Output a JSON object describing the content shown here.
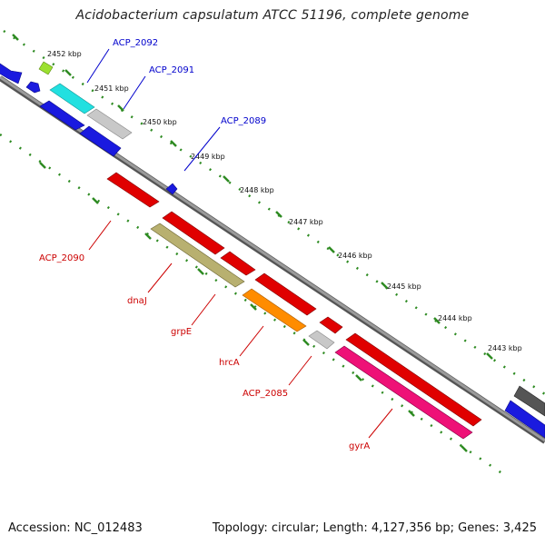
{
  "title": "Acidobacterium capsulatum ATCC 51196, complete genome",
  "footer": {
    "accession": "Accession: NC_012483",
    "summary": "Topology: circular; Length: 4,127,356 bp; Genes: 3,425"
  },
  "scale": {
    "ticks": [
      "2452 kbp",
      "2451 kbp",
      "2450 kbp",
      "2449 kbp",
      "2448 kbp",
      "2447 kbp",
      "2446 kbp",
      "2445 kbp",
      "2444 kbp",
      "2443 kbp"
    ]
  },
  "colors": {
    "backbone": "#8a8a8a",
    "dotted_track": "#2e8b22",
    "forward_label": "#0000cc",
    "reverse_label": "#cc0000"
  },
  "genes_forward": [
    {
      "name": "ACP_2092",
      "color": "#1a1adf"
    },
    {
      "name": "ACP_2091",
      "color": "#1a1adf"
    },
    {
      "name": "ACP_2089",
      "color": "#1a1adf"
    }
  ],
  "genes_reverse": [
    {
      "name": "ACP_2090",
      "color": "#e00000"
    },
    {
      "name": "dnaJ",
      "color": "#e00000"
    },
    {
      "name": "grpE",
      "color": "#b8b070"
    },
    {
      "name": "hrcA",
      "color": "#ff8c00"
    },
    {
      "name": "ACP_2085",
      "color": "#e00000"
    },
    {
      "name": "gyrA",
      "color": "#ee1177"
    }
  ]
}
